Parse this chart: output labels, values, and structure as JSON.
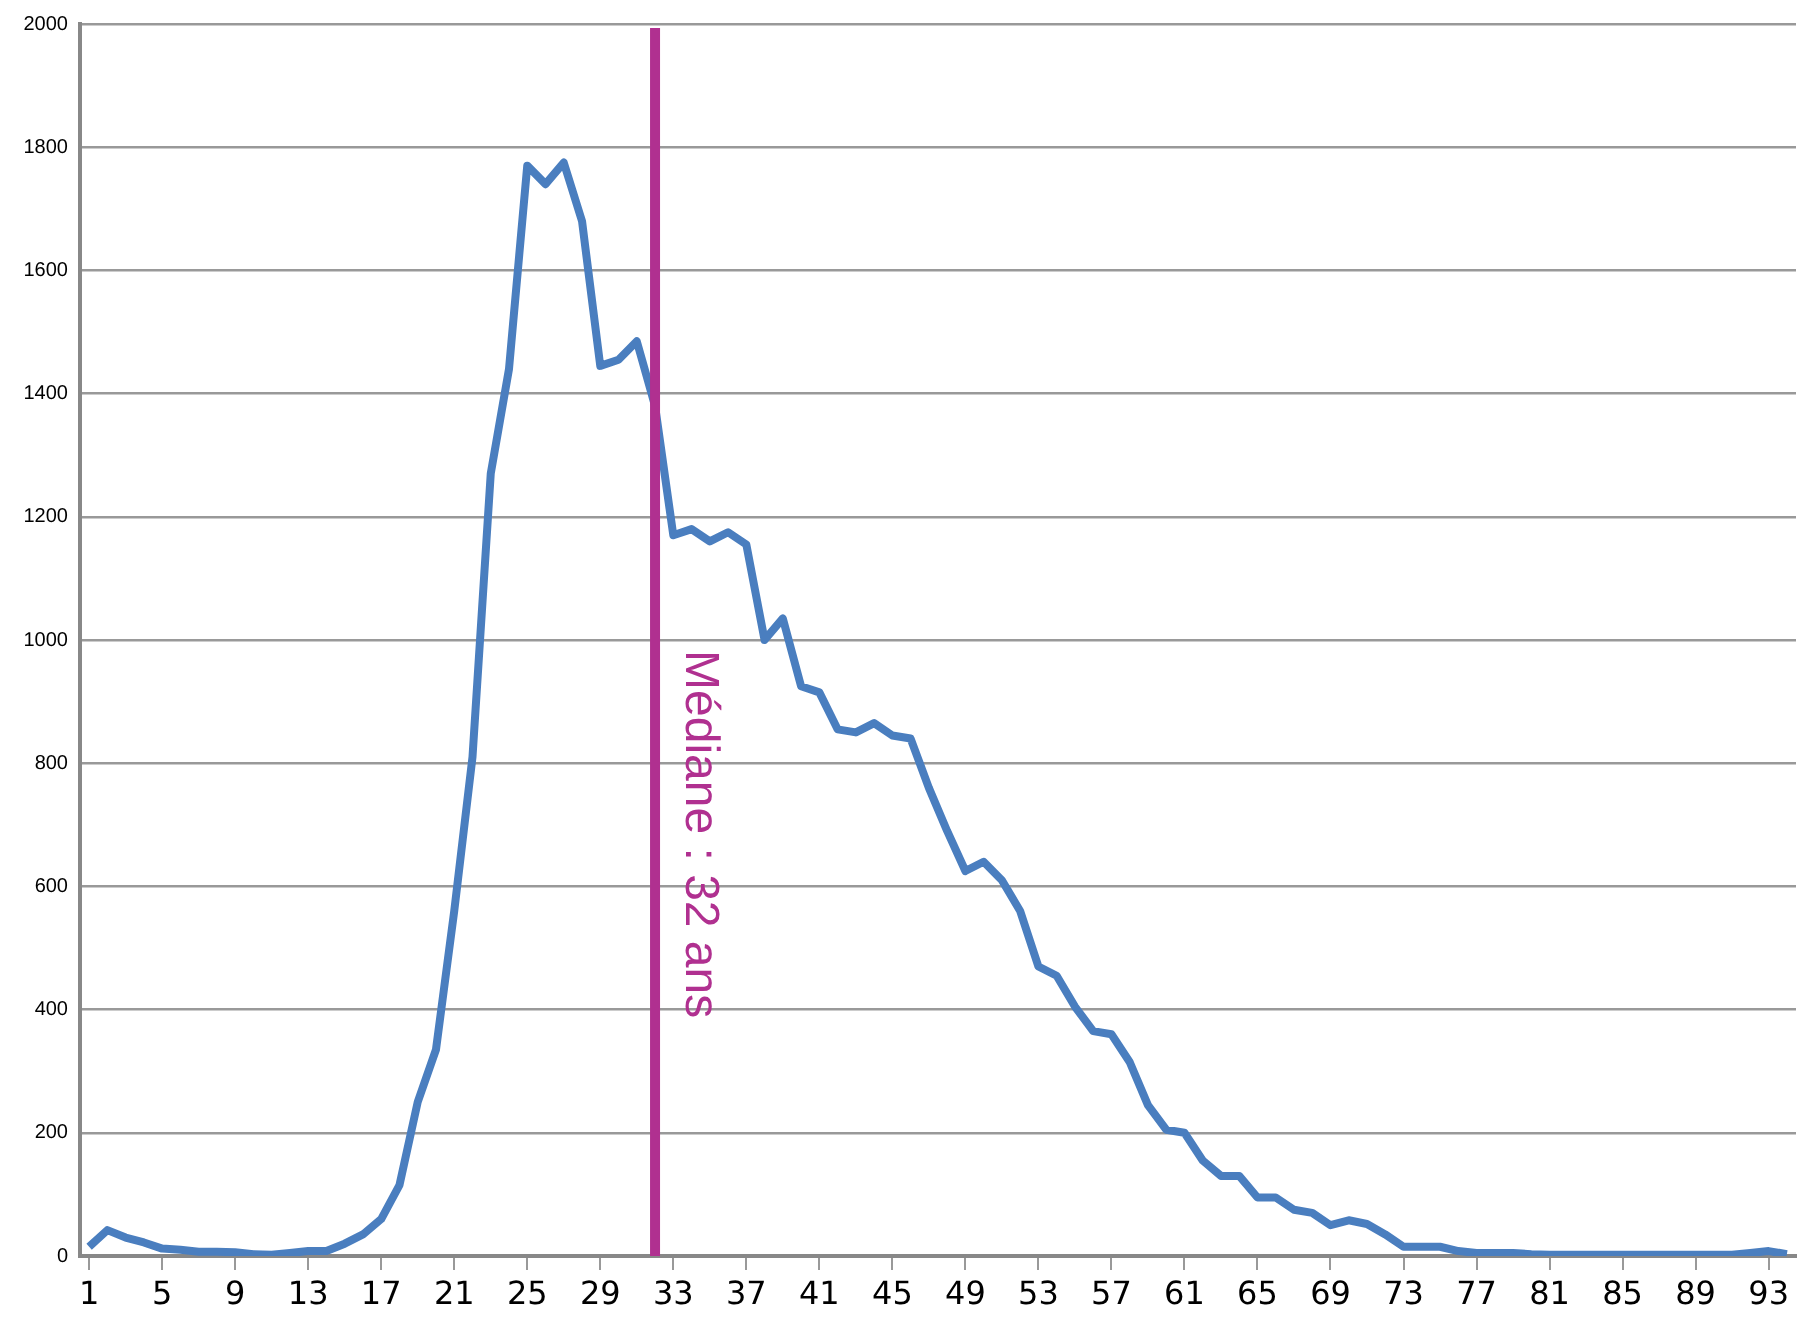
{
  "chart_data": {
    "type": "line",
    "x": [
      1,
      2,
      3,
      4,
      5,
      6,
      7,
      8,
      9,
      10,
      11,
      12,
      13,
      14,
      15,
      16,
      17,
      18,
      19,
      20,
      21,
      22,
      23,
      24,
      25,
      26,
      27,
      28,
      29,
      30,
      31,
      32,
      33,
      34,
      35,
      36,
      37,
      38,
      39,
      40,
      41,
      42,
      43,
      44,
      45,
      46,
      47,
      48,
      49,
      50,
      51,
      52,
      53,
      54,
      55,
      56,
      57,
      58,
      59,
      60,
      61,
      62,
      63,
      64,
      65,
      66,
      67,
      68,
      69,
      70,
      71,
      72,
      73,
      74,
      75,
      76,
      77,
      78,
      79,
      80,
      81,
      82,
      83,
      84,
      85,
      86,
      87,
      88,
      89,
      90,
      91,
      92,
      93,
      94
    ],
    "series": [
      {
        "color": "#4a7ebf",
        "values": [
          15,
          42,
          30,
          22,
          12,
          10,
          7,
          7,
          6,
          3,
          2,
          5,
          8,
          8,
          20,
          35,
          60,
          115,
          250,
          335,
          560,
          810,
          1270,
          1440,
          1770,
          1740,
          1775,
          1680,
          1445,
          1455,
          1485,
          1380,
          1170,
          1180,
          1160,
          1175,
          1155,
          1000,
          1035,
          925,
          915,
          855,
          850,
          865,
          845,
          840,
          760,
          690,
          625,
          640,
          610,
          560,
          470,
          455,
          405,
          365,
          360,
          315,
          245,
          205,
          200,
          155,
          130,
          130,
          95,
          95,
          75,
          70,
          50,
          58,
          52,
          35,
          15,
          15,
          15,
          8,
          5,
          5,
          5,
          3,
          2,
          2,
          2,
          2,
          2,
          2,
          2,
          2,
          2,
          2,
          2,
          5,
          8,
          3
        ]
      }
    ],
    "xlim": [
      0.5,
      94.5
    ],
    "xticks": [
      1,
      5,
      9,
      13,
      17,
      21,
      25,
      29,
      33,
      37,
      41,
      45,
      49,
      53,
      57,
      61,
      65,
      69,
      73,
      77,
      81,
      85,
      89,
      93
    ],
    "ylim": [
      0,
      2000
    ],
    "yticks": [
      0,
      200,
      400,
      600,
      800,
      1000,
      1200,
      1400,
      1600,
      1800,
      2000
    ],
    "grid": "y",
    "legend": false,
    "marker": "none",
    "line_style": "solid",
    "ref_lines": [
      {
        "axis": "x",
        "value": 32,
        "label": "Médiane : 32 ans",
        "color": "#b03090"
      }
    ]
  }
}
